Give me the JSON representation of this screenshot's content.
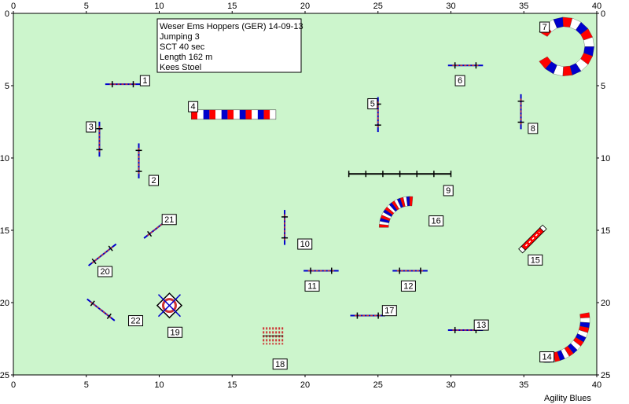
{
  "course": {
    "info": [
      "Weser Ems Hoppers (GER) 14-09-13",
      "Jumping 3",
      "SCT 40 sec",
      "Length 162 m",
      "Kees Stoel"
    ],
    "brand": "Agility Blues",
    "x_ticks": [
      "0",
      "5",
      "10",
      "15",
      "20",
      "25",
      "30",
      "35",
      "40"
    ],
    "y_ticks": [
      "0",
      "5",
      "10",
      "15",
      "20",
      "25"
    ],
    "xlim": [
      0,
      40
    ],
    "ylim": [
      0,
      25
    ],
    "colors": {
      "field": "#ccf5cc",
      "blue": "#0000cc",
      "red": "#ff0000",
      "bar_red": "#cc3333",
      "frame": "#000000"
    },
    "obstacles": [
      {
        "n": "1",
        "kind": "jump",
        "x": 7.5,
        "y": 4.9,
        "angle": 0,
        "length": 2.4,
        "label_at": [
          8.7,
          4.3
        ]
      },
      {
        "n": "2",
        "kind": "jump",
        "x": 8.6,
        "y": 10.2,
        "angle": 90,
        "length": 2.4,
        "label_at": [
          9.3,
          11.2
        ]
      },
      {
        "n": "3",
        "kind": "jump",
        "x": 5.9,
        "y": 8.7,
        "angle": 90,
        "length": 2.4,
        "label_at": [
          5.0,
          7.5
        ]
      },
      {
        "n": "4",
        "kind": "tunnel_straight",
        "x": 12.2,
        "y": 7.0,
        "x2": 18.0,
        "label_at": [
          12.0,
          6.1
        ]
      },
      {
        "n": "5",
        "kind": "jump",
        "x": 25.0,
        "y": 7.0,
        "angle": 90,
        "length": 2.4,
        "label_at": [
          24.3,
          5.9
        ]
      },
      {
        "n": "6",
        "kind": "jump",
        "x": 31.0,
        "y": 3.6,
        "angle": 0,
        "length": 2.4,
        "label_at": [
          30.3,
          4.3
        ]
      },
      {
        "n": "7",
        "kind": "tunnel_curve",
        "cx": 37.8,
        "cy": 2.3,
        "r": 1.7,
        "a0": -150,
        "a1": 150,
        "label_at": [
          36.1,
          0.6
        ]
      },
      {
        "n": "8",
        "kind": "jump",
        "x": 34.8,
        "y": 6.8,
        "angle": 90,
        "length": 2.4,
        "label_at": [
          35.3,
          7.6
        ]
      },
      {
        "n": "9",
        "kind": "wall",
        "x": 23.0,
        "y": 11.1,
        "x2": 30.0,
        "label_at": [
          29.5,
          11.9
        ]
      },
      {
        "n": "10",
        "kind": "jump",
        "x": 18.6,
        "y": 14.8,
        "angle": 90,
        "length": 2.4,
        "label_at": [
          19.5,
          15.6
        ]
      },
      {
        "n": "11",
        "kind": "jump",
        "x": 21.1,
        "y": 17.8,
        "angle": 0,
        "length": 2.4,
        "label_at": [
          20.0,
          18.5
        ]
      },
      {
        "n": "12",
        "kind": "jump",
        "x": 27.2,
        "y": 17.8,
        "angle": 0,
        "length": 2.4,
        "label_at": [
          26.6,
          18.5
        ]
      },
      {
        "n": "13",
        "kind": "jump",
        "x": 31.0,
        "y": 21.9,
        "angle": 0,
        "length": 2.4,
        "label_at": [
          31.6,
          21.2
        ]
      },
      {
        "n": "14",
        "kind": "tunnel_curve",
        "cx": 36.6,
        "cy": 21.2,
        "r": 2.6,
        "a0": -10,
        "a1": 100,
        "label_at": [
          36.1,
          23.4
        ]
      },
      {
        "n": "15",
        "kind": "jump",
        "x": 35.6,
        "y": 15.6,
        "angle": -45,
        "length": 2.0,
        "color": "red",
        "label_at": [
          35.3,
          16.7
        ]
      },
      {
        "n": "16",
        "kind": "tunnel_curve",
        "cx": 27.2,
        "cy": 14.8,
        "r": 1.8,
        "a0": 180,
        "a1": 275,
        "label_at": [
          28.5,
          14.0
        ]
      },
      {
        "n": "17",
        "kind": "jump",
        "x": 24.3,
        "y": 20.9,
        "angle": 0,
        "length": 2.4,
        "label_at": [
          25.3,
          20.2
        ]
      },
      {
        "n": "18",
        "kind": "weave",
        "x": 17.8,
        "y": 22.3,
        "label_at": [
          17.8,
          23.9
        ]
      },
      {
        "n": "19",
        "kind": "tire",
        "x": 10.7,
        "y": 20.2,
        "label_at": [
          10.6,
          21.7
        ]
      },
      {
        "n": "20",
        "kind": "jump",
        "x": 6.1,
        "y": 16.7,
        "angle": -38,
        "length": 2.4,
        "label_at": [
          5.8,
          17.5
        ]
      },
      {
        "n": "21",
        "kind": "jump",
        "x": 9.9,
        "y": 14.8,
        "angle": -38,
        "length": 2.4,
        "label_at": [
          10.2,
          13.9
        ]
      },
      {
        "n": "22",
        "kind": "jump",
        "x": 6.0,
        "y": 20.5,
        "angle": 38,
        "length": 2.4,
        "label_at": [
          7.9,
          20.9
        ]
      }
    ]
  }
}
